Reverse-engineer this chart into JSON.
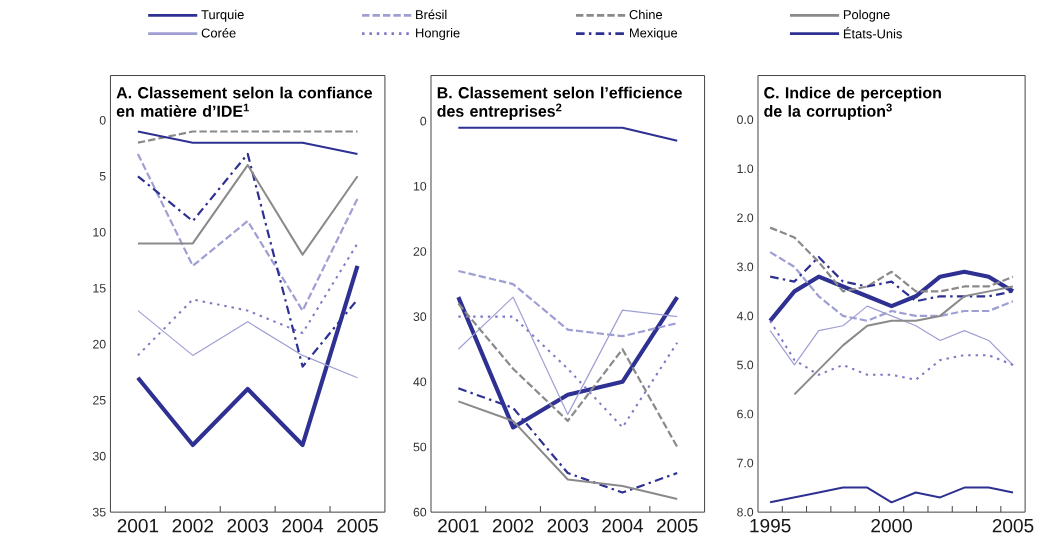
{
  "chart_data": [
    {
      "type": "line",
      "title": "A. Classement selon la confiance en matière d’IDE$^{1}$",
      "categories": [
        "2001",
        "2002",
        "2003",
        "2004",
        "2005"
      ],
      "ylim": [
        35,
        -4
      ],
      "yticks": [
        0,
        5,
        10,
        15,
        20,
        25,
        30,
        35
      ],
      "legend": "top",
      "series": [
        {
          "name": "Turquie",
          "color": "#2e3192",
          "line_style": "solid",
          "values": [
            23,
            29,
            24,
            29,
            13
          ]
        },
        {
          "name": "Corée",
          "color": "#9f9fd4",
          "line_style": "solid",
          "values": [
            17,
            21,
            18,
            21,
            23
          ]
        },
        {
          "name": "Brésil",
          "color": "#9f9fd4",
          "line_style": "dashed",
          "values": [
            3,
            13,
            9,
            17,
            7
          ]
        },
        {
          "name": "Hongrie",
          "color": "#7e78c2",
          "line_style": "dotted",
          "values": [
            21,
            16,
            17,
            19,
            11
          ]
        },
        {
          "name": "Chine",
          "color": "#8a8a8a",
          "line_style": "dashed",
          "values": [
            2,
            1,
            1,
            1,
            1
          ]
        },
        {
          "name": "Mexique",
          "color": "#2e3192",
          "line_style": "dashdot",
          "values": [
            5,
            9,
            3,
            22,
            16
          ]
        },
        {
          "name": "Pologne",
          "color": "#8a8a8a",
          "line_style": "solid",
          "values": [
            11,
            11,
            4,
            12,
            5
          ]
        },
        {
          "name": "États-Unis",
          "color": "#2e3192",
          "line_style": "solid",
          "values": [
            1,
            2,
            2,
            2,
            3
          ]
        }
      ]
    },
    {
      "type": "line",
      "title": "B. Classement selon l’efficience des entreprises$^{2}$",
      "categories": [
        "2001",
        "2002",
        "2003",
        "2004",
        "2005"
      ],
      "ylim": [
        60,
        -7
      ],
      "yticks": [
        0,
        10,
        20,
        30,
        40,
        50,
        60
      ],
      "series": [
        {
          "color": "#2e3192",
          "line_style": "solid",
          "values": [
            27,
            47,
            42,
            40,
            27
          ]
        },
        {
          "color": "#9f9fd4",
          "line_style": "solid",
          "values": [
            35,
            27,
            45,
            29,
            30
          ]
        },
        {
          "color": "#9f9fd4",
          "line_style": "dashed",
          "values": [
            23,
            25,
            32,
            33,
            31
          ]
        },
        {
          "color": "#7e78c2",
          "line_style": "dotted",
          "values": [
            30,
            30,
            38,
            47,
            34
          ]
        },
        {
          "color": "#8a8a8a",
          "line_style": "dashed",
          "values": [
            28,
            38,
            46,
            35,
            50
          ]
        },
        {
          "color": "#2e3192",
          "line_style": "dashdot",
          "values": [
            41,
            44,
            54,
            57,
            54
          ]
        },
        {
          "color": "#8a8a8a",
          "line_style": "solid",
          "values": [
            43,
            46,
            55,
            56,
            58
          ]
        },
        {
          "color": "#2e3192",
          "line_style": "solid",
          "values": [
            1,
            1,
            1,
            1,
            3
          ]
        }
      ]
    },
    {
      "type": "line",
      "title": "C. Indice de perception de la corruption$^{3}$",
      "x": [
        1995,
        1996,
        1997,
        1998,
        1999,
        2000,
        2001,
        2002,
        2003,
        2004,
        2005
      ],
      "xlim": [
        1994.5,
        2005.5
      ],
      "xticks": [
        {
          "value": 1995,
          "label": "1995"
        },
        {
          "value": 1995.5,
          "label": null
        },
        {
          "value": 1996.5,
          "label": null
        },
        {
          "value": 1997.5,
          "label": null
        },
        {
          "value": 1998.5,
          "label": null
        },
        {
          "value": 1999.5,
          "label": null
        },
        {
          "value": 2000,
          "label": "2000"
        },
        {
          "value": 2000.5,
          "label": null
        },
        {
          "value": 2001.5,
          "label": null
        },
        {
          "value": 2002.5,
          "label": null
        },
        {
          "value": 2003.5,
          "label": null
        },
        {
          "value": 2004.5,
          "label": null
        },
        {
          "value": 2005,
          "label": "2005"
        }
      ],
      "ylim": [
        8,
        -0.9
      ],
      "yticks": [
        {
          "value": 0,
          "label": "0.0"
        },
        {
          "value": 1,
          "label": "1.0"
        },
        {
          "value": 2,
          "label": "2.0"
        },
        {
          "value": 3,
          "label": "3.0"
        },
        {
          "value": 4,
          "label": "4.0"
        },
        {
          "value": 5,
          "label": "5.0"
        },
        {
          "value": 6,
          "label": "6.0"
        },
        {
          "value": 7,
          "label": "7.0"
        },
        {
          "value": 8,
          "label": "8.0"
        }
      ],
      "series": [
        {
          "color": "#2e3192",
          "line_style": "solid",
          "values": [
            4.1,
            3.5,
            3.2,
            3.4,
            3.6,
            3.8,
            3.6,
            3.2,
            3.1,
            3.2,
            3.5
          ]
        },
        {
          "color": "#9f9fd4",
          "line_style": "solid",
          "values": [
            4.3,
            5.0,
            4.3,
            4.2,
            3.8,
            4.0,
            4.2,
            4.5,
            4.3,
            4.5,
            5.0
          ]
        },
        {
          "color": "#9f9fd4",
          "line_style": "dashed",
          "values": [
            2.7,
            3.0,
            3.6,
            4.0,
            4.1,
            3.9,
            4.0,
            4.0,
            3.9,
            3.9,
            3.7
          ]
        },
        {
          "color": "#7e78c2",
          "line_style": "dotted",
          "values": [
            4.1,
            4.9,
            5.2,
            5.0,
            5.2,
            5.2,
            5.3,
            4.9,
            4.8,
            4.8,
            5.0
          ]
        },
        {
          "color": "#8a8a8a",
          "line_style": "dashed",
          "values": [
            2.2,
            2.4,
            2.9,
            3.5,
            3.4,
            3.1,
            3.5,
            3.5,
            3.4,
            3.4,
            3.2
          ]
        },
        {
          "color": "#2e3192",
          "line_style": "dashdot",
          "values": [
            3.2,
            3.3,
            2.8,
            3.3,
            3.4,
            3.3,
            3.7,
            3.6,
            3.6,
            3.6,
            3.5
          ]
        },
        {
          "color": "#8a8a8a",
          "line_style": "solid",
          "values": [
            null,
            5.6,
            5.1,
            4.6,
            4.2,
            4.1,
            4.1,
            4.0,
            3.6,
            3.5,
            3.4
          ]
        },
        {
          "color": "#2e3192",
          "line_style": "solid",
          "values": [
            7.8,
            7.7,
            7.6,
            7.5,
            7.5,
            7.8,
            7.6,
            7.7,
            7.5,
            7.5,
            7.6
          ]
        }
      ]
    }
  ]
}
